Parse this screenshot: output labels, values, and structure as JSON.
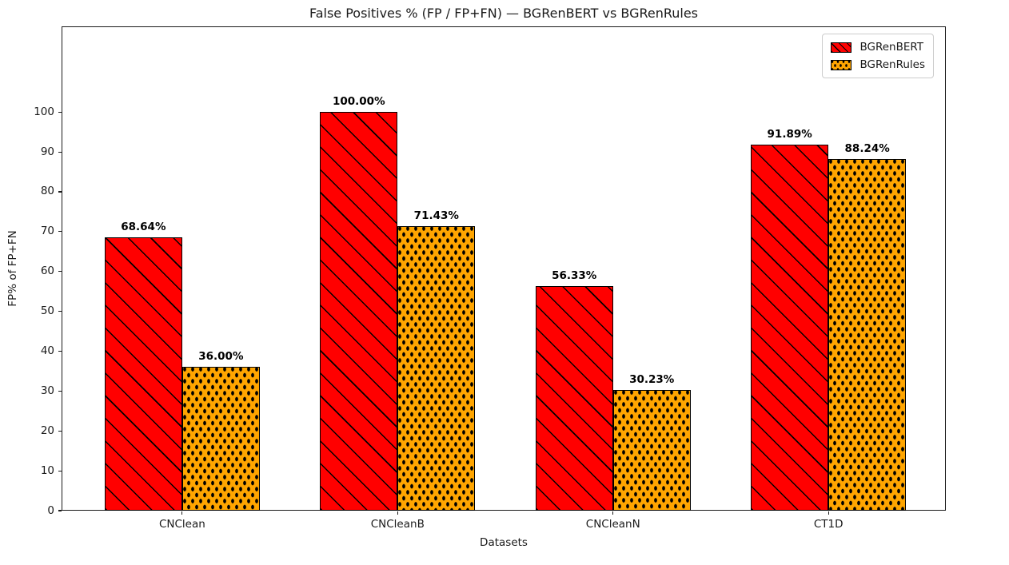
{
  "chart_data": {
    "type": "bar",
    "title": "False Positives % (FP / FP+FN) — BGRenBERT vs BGRenRules",
    "xlabel": "Datasets",
    "ylabel": "FP% of FP+FN",
    "categories": [
      "CNClean",
      "CNCleanB",
      "CNCleanN",
      "CT1D"
    ],
    "series": [
      {
        "name": "BGRenBERT",
        "color": "#ff0000",
        "hatch": "diagonal",
        "values": [
          68.64,
          100.0,
          56.33,
          91.89
        ],
        "labels": [
          "68.64%",
          "100.00%",
          "56.33%",
          "91.89%"
        ]
      },
      {
        "name": "BGRenRules",
        "color": "#ffa500",
        "hatch": "dots",
        "values": [
          36.0,
          71.43,
          30.23,
          88.24
        ],
        "labels": [
          "36.00%",
          "71.43%",
          "30.23%",
          "88.24%"
        ]
      }
    ],
    "yticks": [
      0,
      10,
      20,
      30,
      40,
      50,
      60,
      70,
      80,
      90,
      100
    ],
    "ylim": [
      0,
      121.5
    ],
    "grid": false,
    "legend_position": "upper right",
    "edge_color": "#000000"
  }
}
